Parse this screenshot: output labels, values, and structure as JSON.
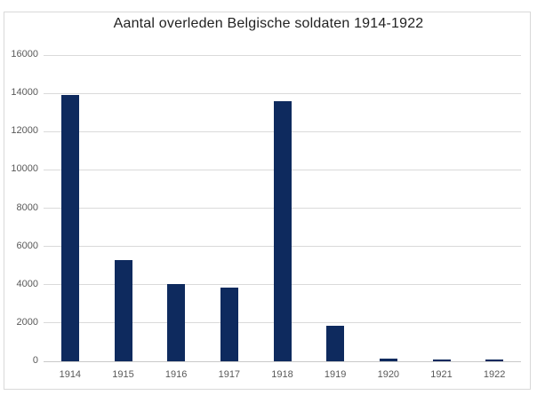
{
  "chart_data": {
    "type": "bar",
    "title": "Aantal overleden Belgische soldaten 1914-1922",
    "categories": [
      "1914",
      "1915",
      "1916",
      "1917",
      "1918",
      "1919",
      "1920",
      "1921",
      "1922"
    ],
    "values": [
      13900,
      5300,
      4030,
      3850,
      13600,
      1870,
      150,
      70,
      80
    ],
    "xlabel": "",
    "ylabel": "",
    "ylim": [
      0,
      16000
    ],
    "ytick_interval": 2000,
    "ytick_labels": [
      "0",
      "2000",
      "4000",
      "6000",
      "8000",
      "10000",
      "12000",
      "14000",
      "16000"
    ],
    "grid": true,
    "legend": false,
    "legend_position": "none",
    "bar_color": "#0e2a5e",
    "gridline_color": "#dadada",
    "axis_line_color": "#c9c9c9",
    "tick_label_color": "#595959",
    "title_color": "#222222",
    "background_color": "#ffffff",
    "border_color": "#d9d9d9"
  }
}
